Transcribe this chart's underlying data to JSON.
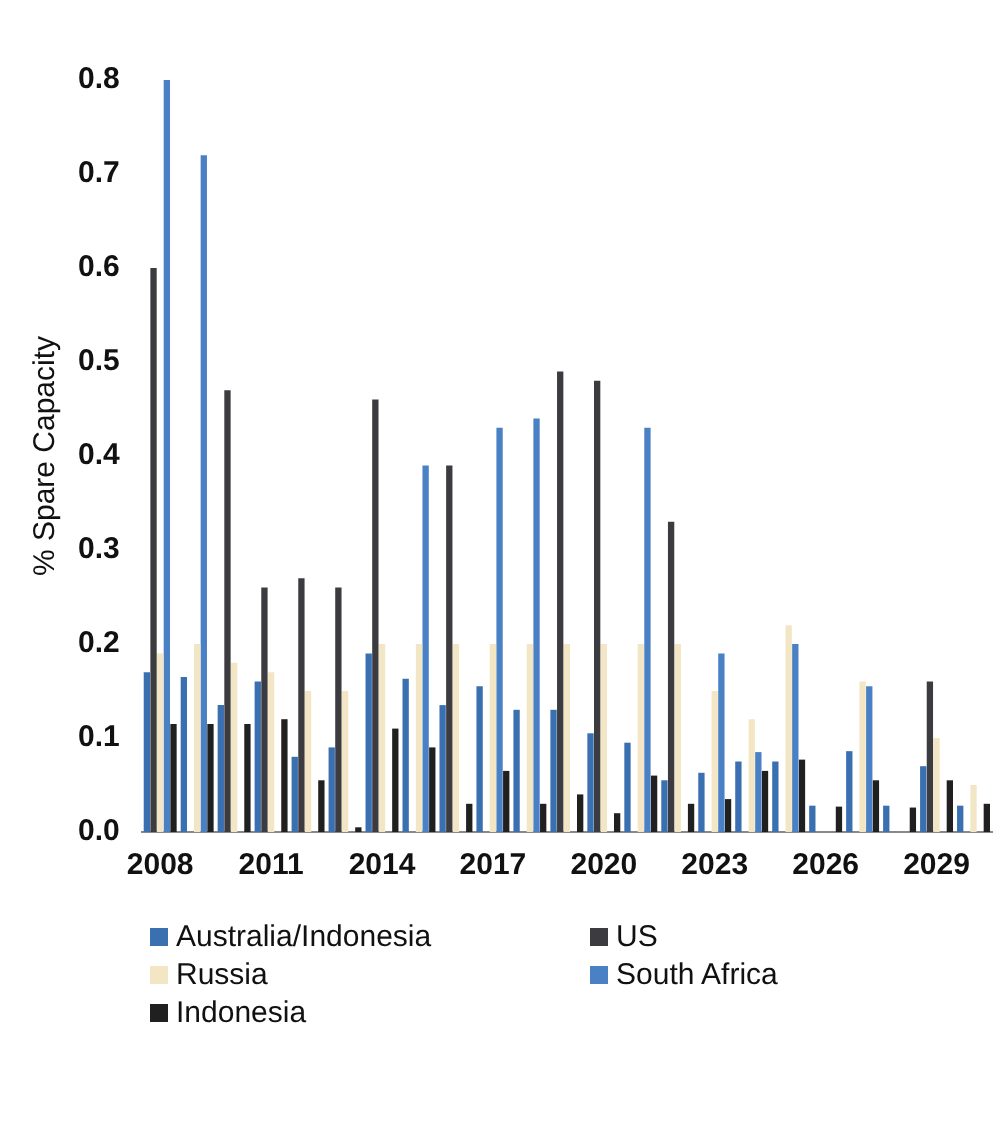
{
  "chart_data": {
    "type": "bar",
    "ylabel": "% Spare Capacity",
    "categories": [
      "2008",
      null,
      null,
      "2011",
      null,
      null,
      "2014",
      null,
      null,
      "2017",
      null,
      null,
      "2020",
      null,
      null,
      "2023",
      null,
      null,
      "2026",
      null,
      null,
      "2029",
      null
    ],
    "series": [
      {
        "name": "Australia/Indonesia",
        "color": "#3a6fb0",
        "values": [
          0.17,
          0.165,
          0.135,
          0.16,
          0.08,
          0.09,
          0.19,
          0.163,
          0.135,
          0.155,
          0.13,
          0.13,
          0.105,
          0.095,
          0.055,
          0.063,
          0.075,
          0.075,
          0.028,
          0.086,
          0.028,
          0.07,
          0.028
        ]
      },
      {
        "name": "US",
        "color": "#3c3c40",
        "values": [
          0.6,
          null,
          0.47,
          0.26,
          0.27,
          0.26,
          0.46,
          null,
          0.39,
          null,
          null,
          0.49,
          0.48,
          null,
          0.33,
          null,
          null,
          null,
          null,
          null,
          null,
          0.16,
          null
        ]
      },
      {
        "name": "Russia",
        "color": "#f2e6c4",
        "values": [
          0.19,
          0.2,
          0.18,
          0.17,
          0.15,
          0.15,
          0.2,
          0.2,
          0.2,
          0.2,
          0.2,
          0.2,
          0.2,
          0.2,
          0.2,
          0.15,
          0.12,
          0.22,
          null,
          0.16,
          null,
          0.1,
          0.05
        ]
      },
      {
        "name": "South Africa",
        "color": "#4a80c4",
        "values": [
          0.8,
          0.72,
          null,
          null,
          null,
          null,
          null,
          0.39,
          null,
          0.43,
          0.44,
          null,
          null,
          0.43,
          null,
          0.19,
          0.085,
          0.2,
          null,
          0.155,
          null,
          null,
          null
        ]
      },
      {
        "name": "Indonesia",
        "color": "#202020",
        "values": [
          0.115,
          0.115,
          0.115,
          0.12,
          0.055,
          0.005,
          0.11,
          0.09,
          0.03,
          0.065,
          0.03,
          0.04,
          0.02,
          0.06,
          0.03,
          0.035,
          0.065,
          0.077,
          0.027,
          0.055,
          0.026,
          0.055,
          0.03
        ]
      }
    ],
    "ylim": [
      0,
      0.8
    ],
    "yticks": [
      {
        "value": 0,
        "label": "0.0"
      },
      0.1,
      0.2,
      0.3,
      0.4,
      0.5,
      0.6,
      0.7,
      0.8
    ],
    "grid": false,
    "legend": "bottom"
  }
}
